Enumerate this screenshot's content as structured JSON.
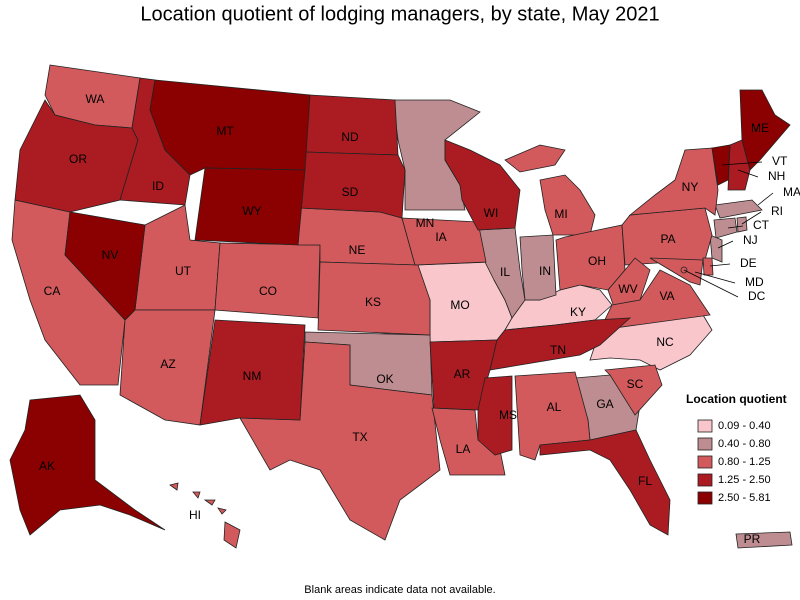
{
  "map": {
    "title": "Location quotient of lodging managers, by state, May 2021",
    "note": "Blank areas indicate data not available.",
    "legend": {
      "title": "Location quotient",
      "bins": [
        {
          "label": "0.09 - 0.40",
          "color": "#f8c6cb",
          "states": [
            "MO",
            "KY",
            "NC"
          ]
        },
        {
          "label": "0.40 - 0.80",
          "color": "#be8d91",
          "states": [
            "MN",
            "IL",
            "IN",
            "OK",
            "GA",
            "MA",
            "CT",
            "RI",
            "NJ",
            "PR"
          ]
        },
        {
          "label": "0.80 - 1.25",
          "color": "#d25a5c",
          "states": [
            "WA",
            "CA",
            "UT",
            "CO",
            "AZ",
            "NE",
            "KS",
            "IA",
            "TX",
            "LA",
            "AL",
            "SC",
            "MI",
            "OH",
            "PA",
            "NY",
            "WV",
            "VA",
            "MD",
            "DE",
            "DC",
            "HI"
          ]
        },
        {
          "label": "1.25 - 2.50",
          "color": "#aa1c22",
          "states": [
            "OR",
            "ID",
            "ND",
            "SD",
            "NM",
            "WI",
            "AR",
            "TN",
            "MS",
            "FL",
            "NH"
          ]
        },
        {
          "label": "2.50 - 5.81",
          "color": "#8b0000",
          "states": [
            "MT",
            "WY",
            "NV",
            "AK",
            "ME",
            "VT"
          ]
        }
      ]
    }
  }
}
